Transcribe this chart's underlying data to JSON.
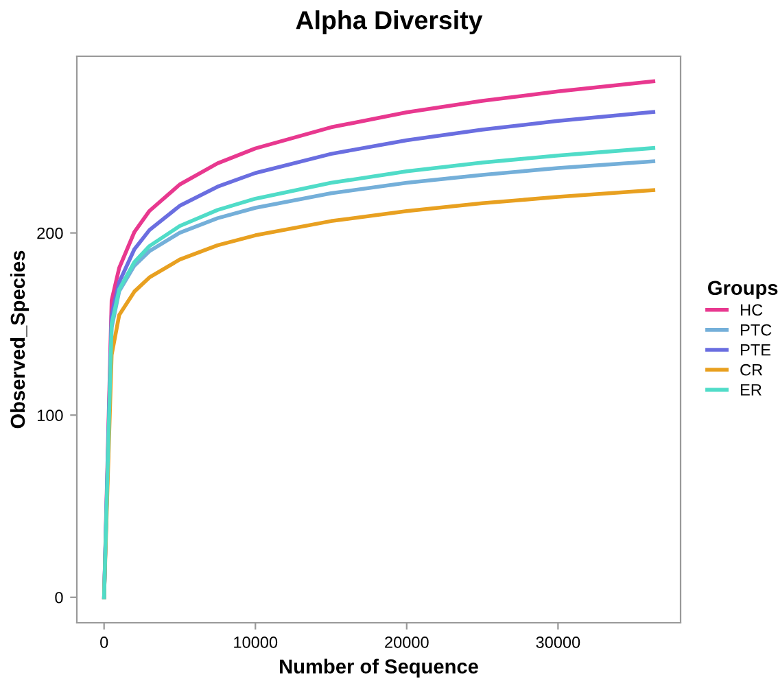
{
  "chart_data": {
    "type": "line",
    "title": "Alpha Diversity",
    "xlabel": "Number of Sequence",
    "ylabel": "Observed_Species",
    "legend_title": "Groups",
    "legend": "right",
    "grid": false,
    "marker": "none",
    "line_style": "solid",
    "x": [
      0,
      500,
      1000,
      2000,
      3000,
      5000,
      7500,
      10000,
      15000,
      20000,
      25000,
      30000,
      36300
    ],
    "xlim": [
      -1800,
      38100
    ],
    "xticks": [
      0,
      10000,
      20000,
      30000
    ],
    "ylim": [
      -14,
      297
    ],
    "yticks": [
      0,
      100,
      200
    ],
    "series": [
      {
        "name": "HC",
        "color": "#e8388f",
        "values": [
          0,
          163,
          180.8,
          200.5,
          212.1,
          226.6,
          238.2,
          246.4,
          258,
          266.2,
          272.5,
          277.7,
          283.2
        ]
      },
      {
        "name": "PTC",
        "color": "#74afd9",
        "values": [
          0,
          148,
          168,
          182,
          190,
          200.1,
          208.1,
          213.8,
          221.8,
          227.5,
          231.9,
          235.6,
          239.3
        ]
      },
      {
        "name": "PTE",
        "color": "#6a6ee0",
        "values": [
          0,
          155,
          173,
          191,
          201.6,
          214.9,
          225.4,
          232.9,
          243.4,
          250.9,
          256.7,
          261.5,
          266.4
        ]
      },
      {
        "name": "CR",
        "color": "#e8a020",
        "values": [
          0,
          133,
          155,
          167.8,
          175.6,
          185.4,
          193.2,
          198.7,
          206.5,
          212,
          216.3,
          219.8,
          223.5
        ]
      },
      {
        "name": "ER",
        "color": "#50dcc8",
        "values": [
          0,
          150,
          169,
          184,
          192.8,
          203.8,
          212.6,
          218.8,
          227.5,
          233.8,
          238.6,
          242.5,
          246.6
        ]
      }
    ]
  }
}
